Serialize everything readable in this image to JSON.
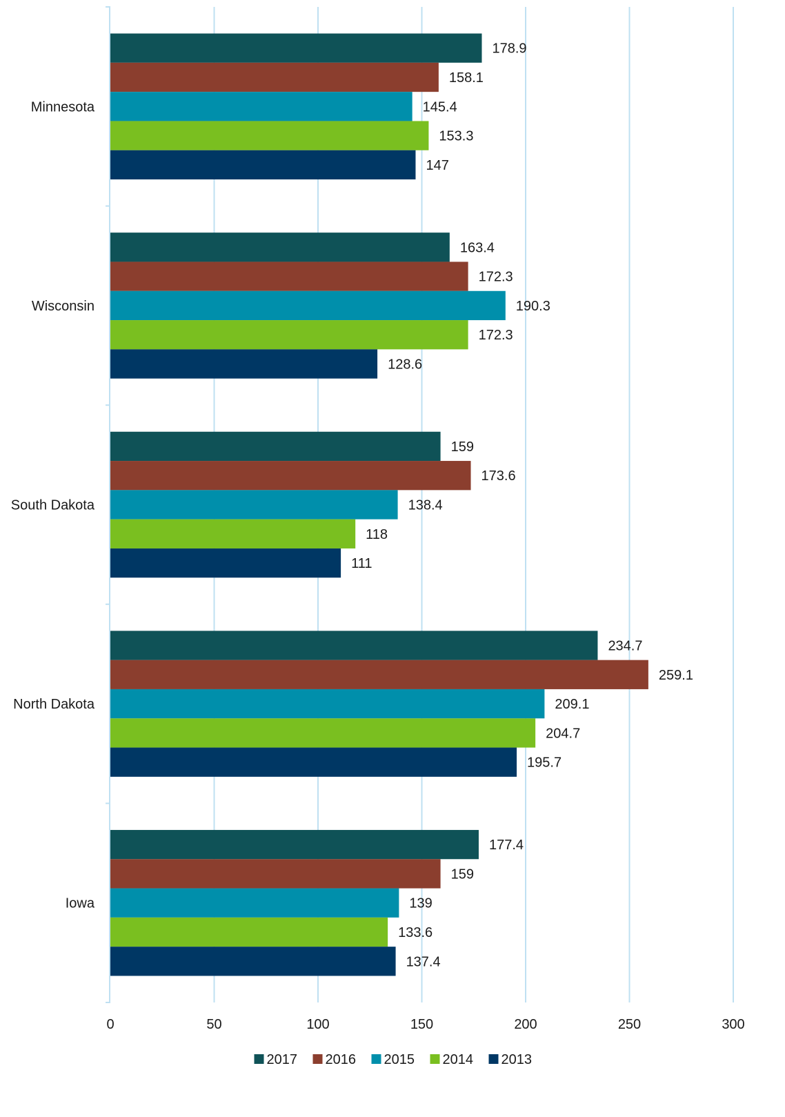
{
  "chart_data": {
    "type": "bar",
    "orientation": "horizontal",
    "title": "",
    "xlabel": "",
    "ylabel": "",
    "categories": [
      "Minnesota",
      "Wisconsin",
      "South Dakota",
      "North Dakota",
      "Iowa"
    ],
    "series": [
      {
        "name": "2017",
        "color": "#0f5257",
        "values": [
          178.9,
          163.4,
          159,
          234.7,
          177.4
        ]
      },
      {
        "name": "2016",
        "color": "#8b3e2e",
        "values": [
          158.1,
          172.3,
          173.6,
          259.1,
          159
        ]
      },
      {
        "name": "2015",
        "color": "#008fab",
        "values": [
          145.4,
          190.3,
          138.4,
          209.1,
          139
        ]
      },
      {
        "name": "2014",
        "color": "#7abf20",
        "values": [
          153.3,
          172.3,
          118,
          204.7,
          133.6
        ]
      },
      {
        "name": "2013",
        "color": "#003764",
        "values": [
          147,
          128.6,
          111,
          195.7,
          137.4
        ]
      }
    ],
    "xlim": [
      0,
      300
    ],
    "xticks": [
      0,
      50,
      100,
      150,
      200,
      250,
      300
    ],
    "grid": true,
    "gridline_color": "#bfe0f2",
    "legend_position": "bottom",
    "data_labels": true
  }
}
